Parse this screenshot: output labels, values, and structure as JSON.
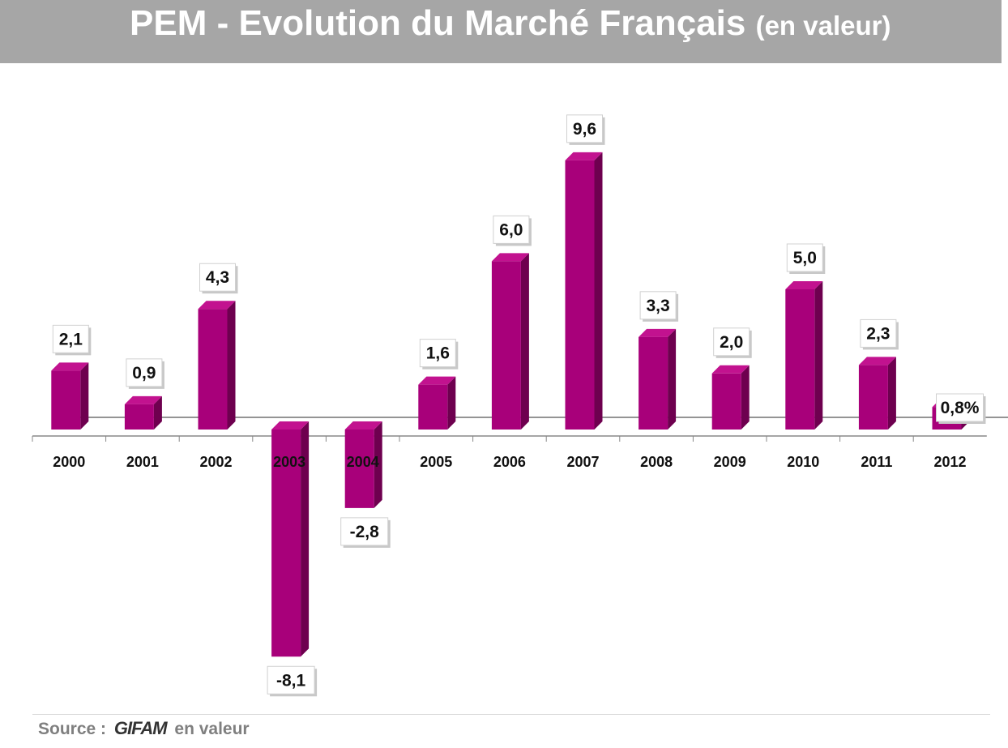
{
  "title": {
    "main": "PEM - Evolution du Marché Français",
    "suffix": "(en valeur)"
  },
  "source": {
    "prefix": "Source :",
    "logo": "GIFAM",
    "suffix": "en valeur"
  },
  "colors": {
    "bar_front": "#a8007a",
    "bar_side": "#6e004f",
    "bar_top": "#c2128f",
    "title_bg": "#a6a6a6"
  },
  "chart_data": {
    "type": "bar",
    "categories": [
      "2000",
      "2001",
      "2002",
      "2003",
      "2004",
      "2005",
      "2006",
      "2007",
      "2008",
      "2009",
      "2010",
      "2011",
      "2012"
    ],
    "values": [
      2.1,
      0.9,
      4.3,
      -8.1,
      -2.8,
      1.6,
      6.0,
      9.6,
      3.3,
      2.0,
      5.0,
      2.3,
      0.8
    ],
    "data_labels": [
      "2,1",
      "0,9",
      "4,3",
      "-8,1",
      "-2,8",
      "1,6",
      "6,0",
      "9,6",
      "3,3",
      "2,0",
      "5,0",
      "2,3",
      "0,8%"
    ],
    "title": "PEM - Evolution du Marché Français (en valeur)",
    "xlabel": "",
    "ylabel": "",
    "ylim": [
      -8.1,
      9.6
    ],
    "grid": false,
    "legend": "none"
  }
}
